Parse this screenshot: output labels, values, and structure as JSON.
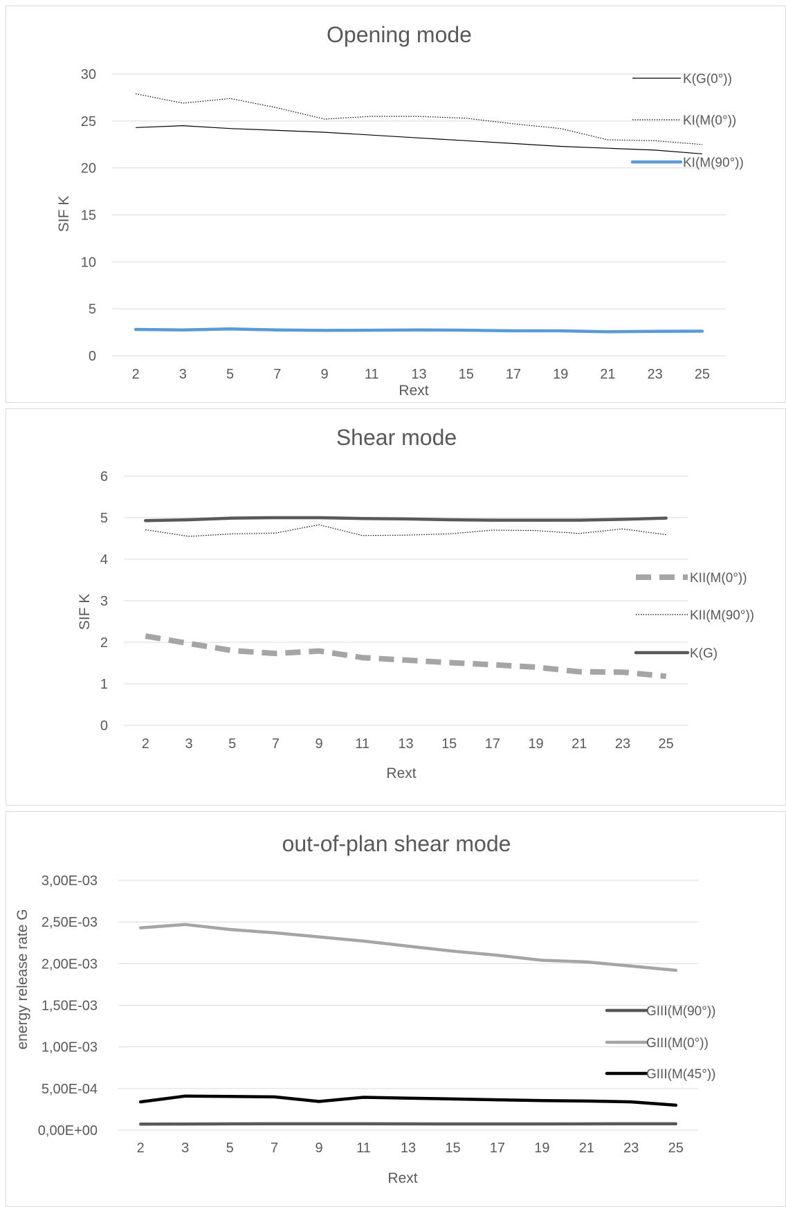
{
  "chart_data": [
    {
      "type": "line",
      "title": "Opening mode",
      "xlabel": "Rext",
      "ylabel": "SIF K",
      "categories": [
        "2",
        "3",
        "5",
        "7",
        "9",
        "11",
        "13",
        "15",
        "17",
        "19",
        "21",
        "23",
        "25"
      ],
      "ylim": [
        0,
        30
      ],
      "yticks": [
        "0",
        "5",
        "10",
        "15",
        "20",
        "25",
        "30"
      ],
      "grid": true,
      "legend_position": "right",
      "series": [
        {
          "name": "K(G(0°))",
          "color": "#000000",
          "style": "solid-thin",
          "values": [
            24.3,
            24.5,
            24.2,
            24.0,
            23.8,
            23.5,
            23.2,
            22.9,
            22.6,
            22.3,
            22.1,
            21.9,
            21.5
          ]
        },
        {
          "name": "KI(M(0°))",
          "color": "#000000",
          "style": "dotted-thin",
          "values": [
            27.9,
            26.9,
            27.4,
            26.4,
            25.2,
            25.5,
            25.5,
            25.3,
            24.7,
            24.2,
            23.0,
            22.9,
            22.5
          ]
        },
        {
          "name": "KI(M(90°))",
          "color": "#5b9bd5",
          "style": "solid-thick",
          "values": [
            2.8,
            2.75,
            2.85,
            2.75,
            2.7,
            2.72,
            2.75,
            2.72,
            2.65,
            2.65,
            2.55,
            2.6,
            2.62
          ]
        }
      ]
    },
    {
      "type": "line",
      "title": "Shear mode",
      "xlabel": "Rext",
      "ylabel": "SIF K",
      "categories": [
        "2",
        "3",
        "5",
        "7",
        "9",
        "11",
        "13",
        "15",
        "17",
        "19",
        "21",
        "23",
        "25"
      ],
      "ylim": [
        0,
        6
      ],
      "yticks": [
        "0",
        "1",
        "2",
        "3",
        "4",
        "5",
        "6"
      ],
      "grid": true,
      "legend_position": "right",
      "series": [
        {
          "name": "KII(M(0°))",
          "color": "#a5a5a5",
          "style": "dashed-thick",
          "values": [
            2.15,
            1.97,
            1.8,
            1.73,
            1.79,
            1.63,
            1.57,
            1.51,
            1.46,
            1.4,
            1.29,
            1.28,
            1.18
          ]
        },
        {
          "name": "KII(M(90°))",
          "color": "#000000",
          "style": "dotted-thin",
          "values": [
            4.71,
            4.55,
            4.61,
            4.63,
            4.83,
            4.57,
            4.58,
            4.61,
            4.7,
            4.69,
            4.62,
            4.73,
            4.59
          ]
        },
        {
          "name": "K(G)",
          "color": "#595959",
          "style": "solid-thick",
          "values": [
            4.93,
            4.95,
            4.99,
            5.0,
            5.0,
            4.98,
            4.97,
            4.95,
            4.94,
            4.94,
            4.94,
            4.96,
            4.99
          ]
        }
      ]
    },
    {
      "type": "line",
      "title": "out-of-plan shear mode",
      "xlabel": "Rext",
      "ylabel": "energy release rate G",
      "categories": [
        "2",
        "3",
        "5",
        "7",
        "9",
        "11",
        "13",
        "15",
        "17",
        "19",
        "21",
        "23",
        "25"
      ],
      "ylim": [
        0,
        0.003
      ],
      "yticks": [
        "0,00E+00",
        "5,00E-04",
        "1,00E-03",
        "1,50E-03",
        "2,00E-03",
        "2,50E-03",
        "3,00E-03"
      ],
      "grid": true,
      "legend_position": "right",
      "series": [
        {
          "name": "GIII(M(90°))",
          "color": "#595959",
          "style": "solid-thick",
          "values": [
            7.2e-05,
            7.4e-05,
            7.6e-05,
            7.7e-05,
            7.7e-05,
            7.7e-05,
            7.6e-05,
            7.5e-05,
            7.5e-05,
            7.5e-05,
            7.6e-05,
            7.7e-05,
            7.7e-05
          ]
        },
        {
          "name": "GIII(M(0°))",
          "color": "#a5a5a5",
          "style": "solid-thick",
          "values": [
            0.00243,
            0.00247,
            0.00241,
            0.00237,
            0.00232,
            0.00227,
            0.00221,
            0.00215,
            0.0021,
            0.00204,
            0.00202,
            0.00197,
            0.00192
          ]
        },
        {
          "name": "GIII(M(45°))",
          "color": "#000000",
          "style": "solid-thick",
          "values": [
            0.00034,
            0.00041,
            0.000405,
            0.0004,
            0.000345,
            0.000395,
            0.000385,
            0.000375,
            0.000365,
            0.000355,
            0.00035,
            0.00034,
            0.0003
          ]
        }
      ]
    }
  ]
}
